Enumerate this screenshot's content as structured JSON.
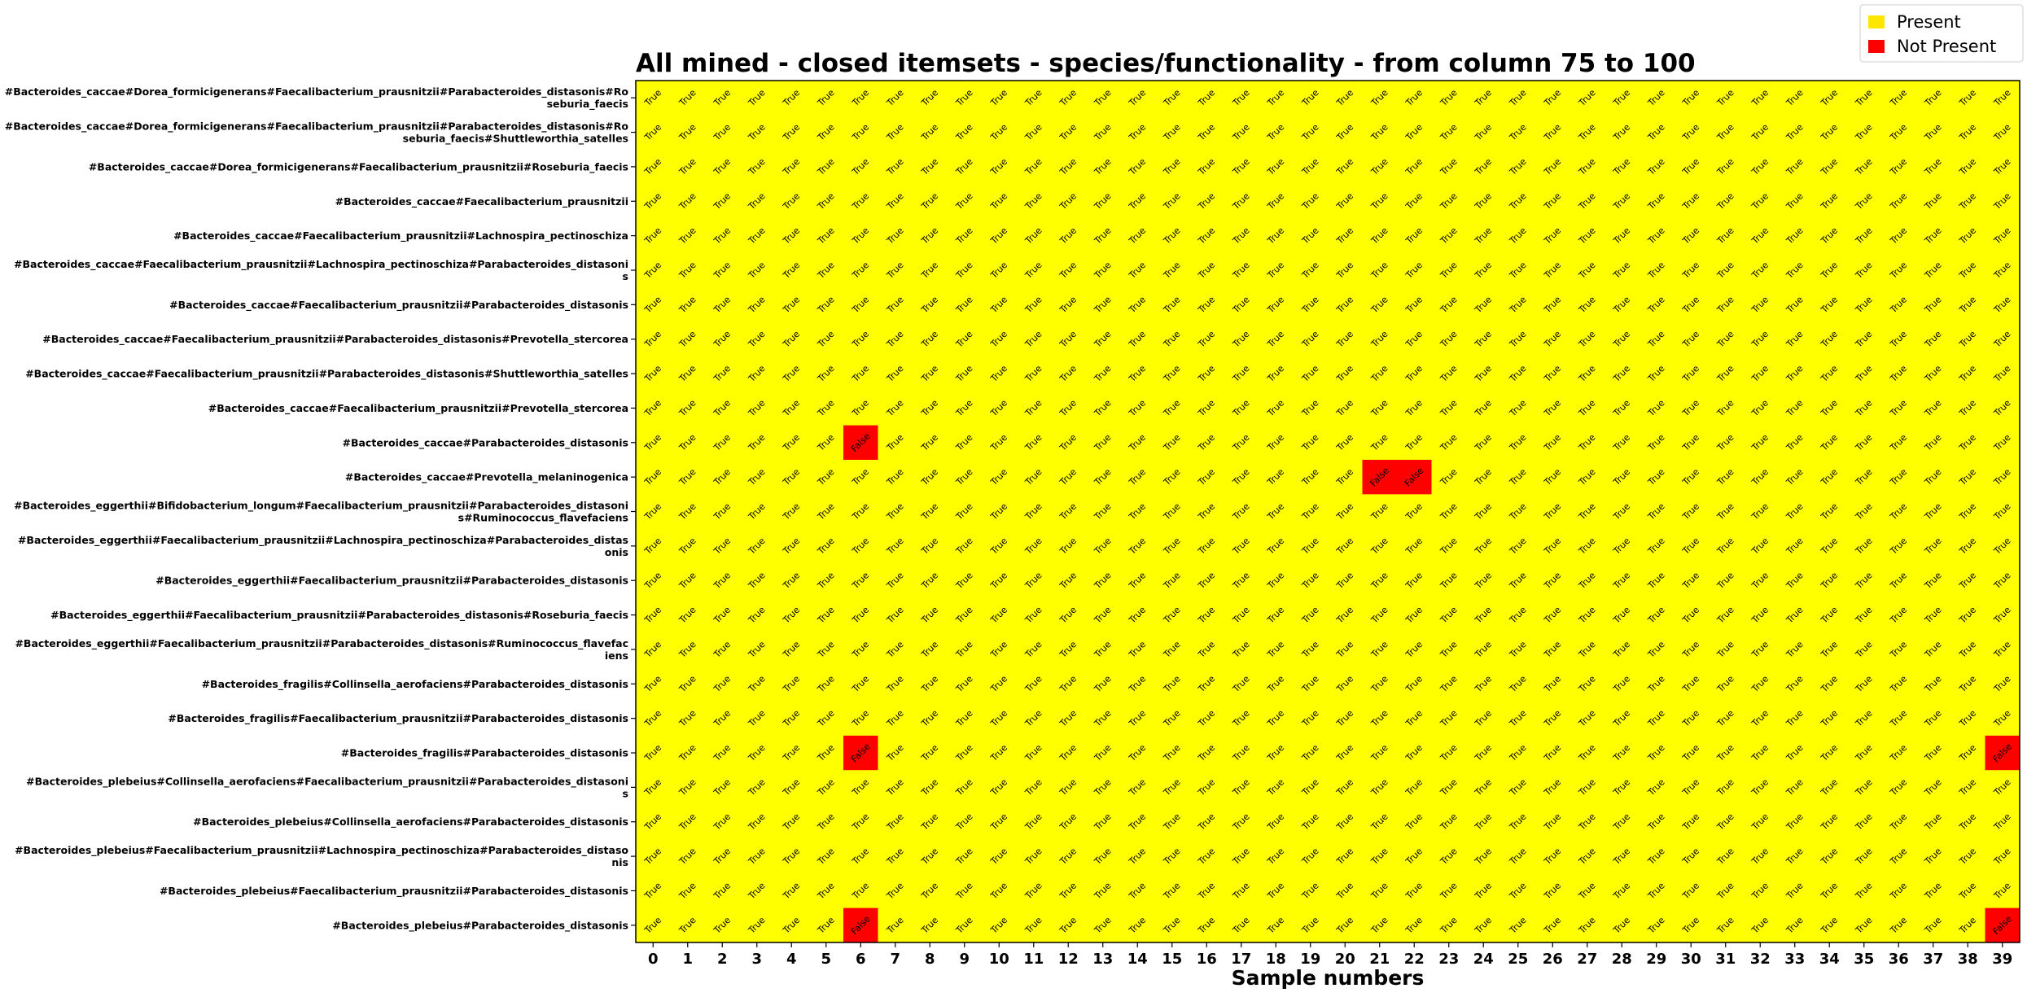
{
  "chart_data": {
    "type": "heatmap",
    "title": "All mined - closed itemsets - species/functionality - from column 75 to 100",
    "xlabel": "Sample numbers",
    "ylabel": "",
    "x": [
      0,
      1,
      2,
      3,
      4,
      5,
      6,
      7,
      8,
      9,
      10,
      11,
      12,
      13,
      14,
      15,
      16,
      17,
      18,
      19,
      20,
      21,
      22,
      23,
      24,
      25,
      26,
      27,
      28,
      29,
      30,
      31,
      32,
      33,
      34,
      35,
      36,
      37,
      38,
      39
    ],
    "rows": [
      [
        "#Bacteroides_caccae#Dorea_formicigenerans#Faecalibacterium_prausnitzii#Parabacteroides_distasonis#Ro",
        "seburia_faecis"
      ],
      [
        "#Bacteroides_caccae#Dorea_formicigenerans#Faecalibacterium_prausnitzii#Parabacteroides_distasonis#Ro",
        "seburia_faecis#Shuttleworthia_satelles"
      ],
      [
        "#Bacteroides_caccae#Dorea_formicigenerans#Faecalibacterium_prausnitzii#Roseburia_faecis"
      ],
      [
        "#Bacteroides_caccae#Faecalibacterium_prausnitzii"
      ],
      [
        "#Bacteroides_caccae#Faecalibacterium_prausnitzii#Lachnospira_pectinoschiza"
      ],
      [
        "#Bacteroides_caccae#Faecalibacterium_prausnitzii#Lachnospira_pectinoschiza#Parabacteroides_distasoni",
        "s"
      ],
      [
        "#Bacteroides_caccae#Faecalibacterium_prausnitzii#Parabacteroides_distasonis"
      ],
      [
        "#Bacteroides_caccae#Faecalibacterium_prausnitzii#Parabacteroides_distasonis#Prevotella_stercorea"
      ],
      [
        "#Bacteroides_caccae#Faecalibacterium_prausnitzii#Parabacteroides_distasonis#Shuttleworthia_satelles"
      ],
      [
        "#Bacteroides_caccae#Faecalibacterium_prausnitzii#Prevotella_stercorea"
      ],
      [
        "#Bacteroides_caccae#Parabacteroides_distasonis"
      ],
      [
        "#Bacteroides_caccae#Prevotella_melaninogenica"
      ],
      [
        "#Bacteroides_eggerthii#Bifidobacterium_longum#Faecalibacterium_prausnitzii#Parabacteroides_distasoni",
        "s#Ruminococcus_flavefaciens"
      ],
      [
        "#Bacteroides_eggerthii#Faecalibacterium_prausnitzii#Lachnospira_pectinoschiza#Parabacteroides_distas",
        "onis"
      ],
      [
        "#Bacteroides_eggerthii#Faecalibacterium_prausnitzii#Parabacteroides_distasonis"
      ],
      [
        "#Bacteroides_eggerthii#Faecalibacterium_prausnitzii#Parabacteroides_distasonis#Roseburia_faecis"
      ],
      [
        "#Bacteroides_eggerthii#Faecalibacterium_prausnitzii#Parabacteroides_distasonis#Ruminococcus_flavefac",
        "iens"
      ],
      [
        "#Bacteroides_fragilis#Collinsella_aerofaciens#Parabacteroides_distasonis"
      ],
      [
        "#Bacteroides_fragilis#Faecalibacterium_prausnitzii#Parabacteroides_distasonis"
      ],
      [
        "#Bacteroides_fragilis#Parabacteroides_distasonis"
      ],
      [
        "#Bacteroides_plebeius#Collinsella_aerofaciens#Faecalibacterium_prausnitzii#Parabacteroides_distasoni",
        "s"
      ],
      [
        "#Bacteroides_plebeius#Collinsella_aerofaciens#Parabacteroides_distasonis"
      ],
      [
        "#Bacteroides_plebeius#Faecalibacterium_prausnitzii#Lachnospira_pectinoschiza#Parabacteroides_distaso",
        "nis"
      ],
      [
        "#Bacteroides_plebeius#Faecalibacterium_prausnitzii#Parabacteroides_distasonis"
      ],
      [
        "#Bacteroides_plebeius#Parabacteroides_distasonis"
      ]
    ],
    "true_label": "True",
    "false_label": "False",
    "false_cells": [
      [
        10,
        6
      ],
      [
        11,
        21
      ],
      [
        11,
        22
      ],
      [
        19,
        6
      ],
      [
        19,
        39
      ],
      [
        24,
        6
      ],
      [
        24,
        39
      ]
    ],
    "legend": [
      {
        "label": "Present",
        "color": "#ffe600"
      },
      {
        "label": "Not Present",
        "color": "#ff0000"
      }
    ],
    "legend_position": "top-right",
    "colors": {
      "present": "#ffff00",
      "not_present": "#ff0000",
      "present_legend": "#ffe600"
    },
    "grid": false
  }
}
